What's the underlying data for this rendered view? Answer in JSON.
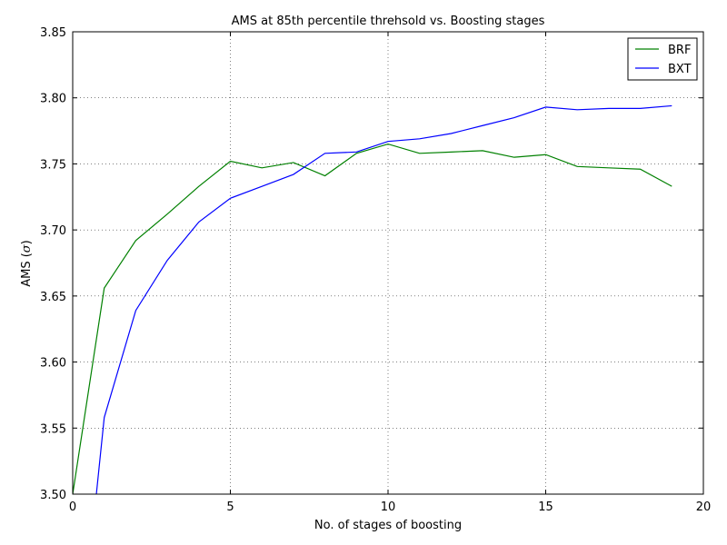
{
  "chart_data": {
    "type": "line",
    "title": "AMS at 85th percentile threhsold vs. Boosting stages",
    "xlabel": "No. of stages of boosting",
    "ylabel": "AMS (σ)",
    "ylabel_prefix": "AMS (",
    "ylabel_symbol": "σ",
    "ylabel_suffix": ")",
    "xlim": [
      0,
      20
    ],
    "ylim": [
      3.5,
      3.85
    ],
    "xticks": [
      0,
      5,
      10,
      15,
      20
    ],
    "xtick_labels": [
      "0",
      "5",
      "10",
      "15",
      "20"
    ],
    "yticks": [
      3.5,
      3.55,
      3.6,
      3.65,
      3.7,
      3.75,
      3.8,
      3.85
    ],
    "ytick_labels": [
      "3.50",
      "3.55",
      "3.60",
      "3.65",
      "3.70",
      "3.75",
      "3.80",
      "3.85"
    ],
    "grid": true,
    "legend_position": "top-right",
    "series": [
      {
        "name": "BRF",
        "color": "#008000",
        "x": [
          0,
          1,
          2,
          3,
          4,
          5,
          6,
          7,
          8,
          9,
          10,
          11,
          12,
          13,
          14,
          15,
          16,
          17,
          18,
          19
        ],
        "y": [
          3.5,
          3.656,
          3.692,
          3.712,
          3.733,
          3.752,
          3.747,
          3.751,
          3.741,
          3.758,
          3.765,
          3.758,
          3.759,
          3.76,
          3.755,
          3.757,
          3.748,
          3.747,
          3.746,
          3.733
        ]
      },
      {
        "name": "BXT",
        "color": "#0000ff",
        "x": [
          0.75,
          1,
          2,
          3,
          4,
          5,
          6,
          7,
          8,
          9,
          10,
          11,
          12,
          13,
          14,
          15,
          16,
          17,
          18,
          19
        ],
        "y": [
          3.5,
          3.558,
          3.639,
          3.677,
          3.706,
          3.724,
          3.733,
          3.742,
          3.758,
          3.759,
          3.767,
          3.769,
          3.773,
          3.779,
          3.785,
          3.793,
          3.791,
          3.792,
          3.792,
          3.794
        ]
      }
    ]
  }
}
